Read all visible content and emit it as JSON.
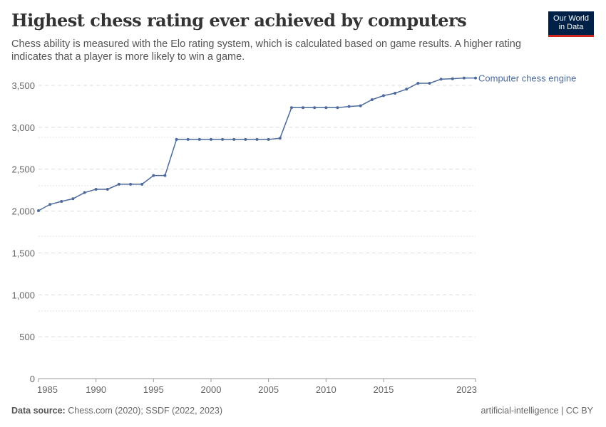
{
  "header": {
    "title": "Highest chess rating ever achieved by computers",
    "subtitle": "Chess ability is measured with the Elo rating system, which is calculated based on game results. A higher rating indicates that a player is more likely to win a game.",
    "logo_line1": "Our World",
    "logo_line2": "in Data"
  },
  "footer": {
    "source_label": "Data source:",
    "source": "Chess.com (2020); SSDF (2022, 2023)",
    "license": "artificial-intelligence | CC BY"
  },
  "colors": {
    "line": "#4c6a9c",
    "grid": "#dddddd"
  },
  "chart_data": {
    "type": "line",
    "title": "Highest chess rating ever achieved by computers",
    "xlabel": "",
    "ylabel": "",
    "xlim": [
      1985,
      2023
    ],
    "ylim": [
      0,
      3500
    ],
    "yticks": [
      0,
      500,
      1000,
      1500,
      2000,
      2500,
      3000,
      3500
    ],
    "ytick_labels": [
      "0",
      "500",
      "1,000",
      "1,500",
      "2,000",
      "2,500",
      "3,000",
      "3,500"
    ],
    "xticks": [
      1985,
      1990,
      1995,
      2000,
      2005,
      2010,
      2015,
      2023
    ],
    "xtick_labels": [
      "1985",
      "1990",
      "1995",
      "2000",
      "2005",
      "2010",
      "2015",
      "2023"
    ],
    "grid": true,
    "series": [
      {
        "name": "Computer chess engine",
        "x": [
          1985,
          1986,
          1987,
          1988,
          1989,
          1990,
          1991,
          1992,
          1993,
          1994,
          1995,
          1996,
          1997,
          1998,
          1999,
          2000,
          2001,
          2002,
          2003,
          2004,
          2005,
          2006,
          2007,
          2008,
          2009,
          2010,
          2011,
          2012,
          2013,
          2014,
          2015,
          2016,
          2017,
          2018,
          2019,
          2020,
          2021,
          2022,
          2023
        ],
        "values": [
          2005,
          2079,
          2115,
          2147,
          2220,
          2260,
          2260,
          2320,
          2320,
          2320,
          2424,
          2424,
          2855,
          2855,
          2855,
          2855,
          2855,
          2855,
          2855,
          2855,
          2855,
          2869,
          3234,
          3234,
          3234,
          3234,
          3234,
          3248,
          3257,
          3330,
          3378,
          3407,
          3455,
          3526,
          3526,
          3574,
          3580,
          3588,
          3588
        ]
      }
    ]
  }
}
